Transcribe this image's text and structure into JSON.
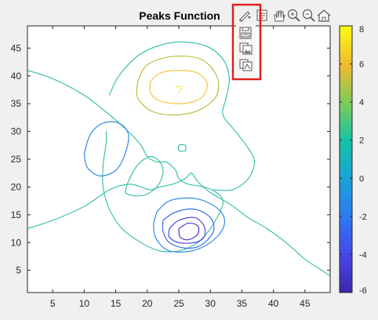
{
  "figure": {
    "title": "Peaks Function"
  },
  "axes_toolbar": {
    "icons": [
      "brush-icon",
      "data-tips-icon",
      "pan-icon",
      "zoom-in-icon",
      "zoom-out-icon",
      "home-icon"
    ]
  },
  "export_menu": {
    "icons": [
      "save-icon",
      "copy-image-icon",
      "copy-vector-icon"
    ],
    "highlight_color": "#e0201f"
  },
  "chart_data": {
    "type": "contour",
    "title": "Peaks Function",
    "xlim": [
      1,
      49
    ],
    "ylim": [
      1,
      49
    ],
    "x_ticks": [
      5,
      10,
      15,
      20,
      25,
      30,
      35,
      40,
      45
    ],
    "y_ticks": [
      5,
      10,
      15,
      20,
      25,
      30,
      35,
      40,
      45
    ],
    "colorbar": {
      "range": [
        -6,
        8
      ],
      "ticks": [
        -6,
        -4,
        -2,
        0,
        2,
        4,
        6,
        8
      ],
      "colormap": "parula"
    },
    "levels": [
      {
        "value": 6.5,
        "color": "#f9e62b",
        "paths": [
          [
            [
              24.5,
              38
            ],
            [
              25.5,
              38
            ],
            [
              25,
              37
            ]
          ]
        ]
      },
      {
        "value": 5,
        "color": "#f5c12f",
        "paths": [
          [
            [
              20.5,
              39
            ],
            [
              22,
              40.5
            ],
            [
              25,
              41
            ],
            [
              28,
              40.5
            ],
            [
              29.5,
              38.5
            ],
            [
              28.5,
              36
            ],
            [
              25.5,
              35
            ],
            [
              22,
              35.5
            ],
            [
              20.5,
              37
            ],
            [
              20.5,
              39
            ]
          ]
        ]
      },
      {
        "value": 3.5,
        "color": "#b8bb31",
        "paths": [
          [
            [
              18.5,
              39
            ],
            [
              20,
              42
            ],
            [
              24,
              43.5
            ],
            [
              28.5,
              43
            ],
            [
              31,
              40
            ],
            [
              31,
              36.5
            ],
            [
              28.5,
              34
            ],
            [
              25,
              33
            ],
            [
              21,
              33.5
            ],
            [
              18.5,
              36
            ],
            [
              18.5,
              39
            ]
          ]
        ]
      },
      {
        "value": 1.5,
        "color": "#2fbca4",
        "paths": [
          [
            [
              1,
              41
            ],
            [
              5,
              39.5
            ],
            [
              10,
              36.5
            ],
            [
              14,
              33
            ],
            [
              17,
              30
            ],
            [
              19,
              27.5
            ],
            [
              20,
              25.5
            ],
            [
              21.5,
              24.5
            ],
            [
              23,
              24.5
            ],
            [
              24.5,
              23
            ],
            [
              25,
              21.5
            ],
            [
              26.5,
              20.5
            ],
            [
              29,
              20
            ],
            [
              31,
              19
            ],
            [
              32,
              17.5
            ],
            [
              31.5,
              15.5
            ],
            [
              30,
              12.5
            ],
            [
              28,
              10
            ],
            [
              25,
              8.5
            ],
            [
              22,
              8.5
            ],
            [
              19,
              10
            ],
            [
              16,
              12.5
            ],
            [
              14,
              16
            ],
            [
              13,
              20
            ],
            [
              13,
              24
            ],
            [
              13.5,
              28
            ],
            [
              13.5,
              30
            ]
          ],
          [
            [
              1,
              12.5
            ],
            [
              5,
              14
            ],
            [
              10,
              16.5
            ],
            [
              14,
              19.5
            ],
            [
              17,
              20.5
            ],
            [
              19,
              20
            ],
            [
              20.5,
              19.5
            ],
            [
              22,
              20
            ],
            [
              24,
              20.5
            ],
            [
              26,
              21.5
            ],
            [
              27,
              22.5
            ],
            [
              28,
              21
            ],
            [
              30,
              19
            ],
            [
              33,
              17
            ],
            [
              36,
              14.5
            ],
            [
              39,
              12.5
            ],
            [
              42,
              10
            ],
            [
              45,
              7
            ],
            [
              47,
              5.5
            ],
            [
              49,
              4
            ]
          ],
          [
            [
              16.5,
              19
            ],
            [
              17,
              21
            ],
            [
              18.5,
              24
            ],
            [
              20.5,
              25.5
            ],
            [
              22,
              24.5
            ],
            [
              22.5,
              22.5
            ],
            [
              21.5,
              20
            ],
            [
              19.5,
              18.5
            ],
            [
              17.5,
              18.5
            ],
            [
              16.5,
              19
            ]
          ],
          [
            [
              25,
              26.5
            ],
            [
              26,
              26.5
            ],
            [
              26,
              27.5
            ],
            [
              25,
              27.5
            ],
            [
              25,
              26.5
            ]
          ],
          [
            [
              14,
              36.5
            ],
            [
              15.5,
              40
            ],
            [
              19,
              44
            ],
            [
              24,
              46
            ],
            [
              29,
              45.5
            ],
            [
              32,
              43
            ],
            [
              33,
              39.5
            ],
            [
              32.5,
              36
            ],
            [
              32,
              33
            ],
            [
              34,
              30
            ],
            [
              36,
              27
            ],
            [
              37,
              24.5
            ],
            [
              36,
              21.5
            ],
            [
              33.5,
              19.5
            ],
            [
              30.5,
              19.5
            ]
          ]
        ]
      },
      {
        "value": -1.5,
        "color": "#1e82e0",
        "paths": [
          [
            [
              10,
              26
            ],
            [
              11,
              29.5
            ],
            [
              13,
              31.5
            ],
            [
              15.5,
              31.5
            ],
            [
              17,
              29.5
            ],
            [
              16.5,
              26
            ],
            [
              15,
              23
            ],
            [
              12.5,
              22
            ],
            [
              10.5,
              23.5
            ],
            [
              10,
              26
            ]
          ],
          [
            [
              21.5,
              15.5
            ],
            [
              23.5,
              17.5
            ],
            [
              27,
              18
            ],
            [
              30,
              17
            ],
            [
              32,
              15
            ],
            [
              32,
              12.5
            ],
            [
              30,
              10
            ],
            [
              27,
              8.5
            ],
            [
              23.5,
              8.5
            ],
            [
              21.5,
              10.5
            ],
            [
              21,
              13
            ],
            [
              21.5,
              15.5
            ]
          ]
        ]
      },
      {
        "value": -3,
        "color": "#2b61e8",
        "paths": [
          [
            [
              22.5,
              14
            ],
            [
              24.5,
              15.5
            ],
            [
              27.5,
              16
            ],
            [
              30,
              14.5
            ],
            [
              30.5,
              12
            ],
            [
              28.5,
              9.5
            ],
            [
              26,
              9
            ],
            [
              23.5,
              10
            ],
            [
              22.5,
              12
            ],
            [
              22.5,
              14
            ]
          ]
        ]
      },
      {
        "value": -4.5,
        "color": "#3e3ad9",
        "paths": [
          [
            [
              23.5,
              12.5
            ],
            [
              25,
              14
            ],
            [
              27.5,
              14.5
            ],
            [
              29,
              13
            ],
            [
              29,
              11
            ],
            [
              27.5,
              10
            ],
            [
              25,
              10
            ],
            [
              23.5,
              11
            ],
            [
              23.5,
              12.5
            ]
          ]
        ]
      },
      {
        "value": -5.5,
        "color": "#3a22c6",
        "paths": [
          [
            [
              25,
              12.5
            ],
            [
              26.5,
              13.5
            ],
            [
              28,
              13
            ],
            [
              28,
              11.5
            ],
            [
              26.5,
              10.5
            ],
            [
              25.2,
              11
            ],
            [
              25,
              12.5
            ]
          ]
        ]
      }
    ]
  }
}
